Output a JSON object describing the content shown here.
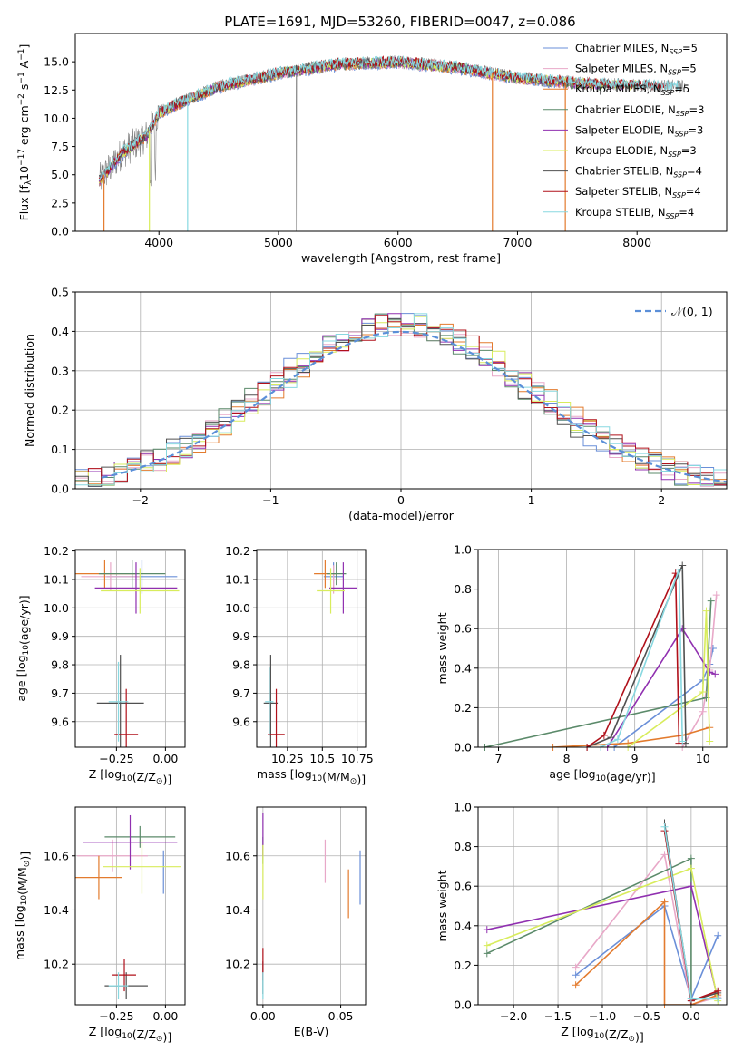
{
  "figure_title": "PLATE=1691, MJD=53260, FIBERID=0047, z=0.086",
  "colors": {
    "Chabrier MILES": "#6a8fd8",
    "Salpeter MILES": "#e8a8c8",
    "Kroupa MILES": "#e37b2e",
    "Chabrier ELODIE": "#5b8a6a",
    "Salpeter ELODIE": "#9030b0",
    "Kroupa ELODIE": "#d8ec5c",
    "Chabrier STELIB": "#505050",
    "Salpeter STELIB": "#b0101a",
    "Kroupa STELIB": "#88d8e0",
    "data": "#808080",
    "normal": "#5b8fd8"
  },
  "chart_data": [
    {
      "id": "spectrum",
      "type": "line",
      "xlabel": "wavelength [Angstrom, rest frame]",
      "ylabel_parts": [
        "Flux [f",
        "λ",
        "10",
        "−17",
        " erg cm",
        "−2",
        " s",
        "−1",
        " A",
        "−1",
        "]"
      ],
      "xlim": [
        3300,
        8750
      ],
      "ylim": [
        0,
        17.5
      ],
      "xticks": [
        4000,
        5000,
        6000,
        7000,
        8000
      ],
      "yticks": [
        0.0,
        2.5,
        5.0,
        7.5,
        10.0,
        12.5,
        15.0
      ],
      "legend": [
        {
          "name": "Chabrier MILES",
          "nssp": "5"
        },
        {
          "name": "Salpeter MILES",
          "nssp": "5"
        },
        {
          "name": "Kroupa MILES",
          "nssp": "5"
        },
        {
          "name": "Chabrier ELODIE",
          "nssp": "3"
        },
        {
          "name": "Salpeter ELODIE",
          "nssp": "3"
        },
        {
          "name": "Kroupa ELODIE",
          "nssp": "3"
        },
        {
          "name": "Chabrier STELIB",
          "nssp": "4"
        },
        {
          "name": "Salpeter STELIB",
          "nssp": "4"
        },
        {
          "name": "Kroupa STELIB",
          "nssp": "4"
        }
      ],
      "legend_position": "right",
      "approx_continuum": [
        [
          3500,
          4.5
        ],
        [
          3700,
          7.0
        ],
        [
          3900,
          8.5
        ],
        [
          4000,
          10.5
        ],
        [
          4200,
          11.5
        ],
        [
          4500,
          12.8
        ],
        [
          5000,
          14.0
        ],
        [
          5500,
          14.8
        ],
        [
          6000,
          15.0
        ],
        [
          6500,
          14.5
        ],
        [
          7000,
          13.6
        ],
        [
          7500,
          13.1
        ],
        [
          8000,
          12.9
        ],
        [
          8400,
          12.8
        ]
      ],
      "notes": "Observed spectrum (gray) overlaid by nine model fits"
    },
    {
      "id": "residuals",
      "type": "area",
      "xlabel": "(data-model)/error",
      "ylabel": "Normed distribution",
      "xlim": [
        -2.5,
        2.5
      ],
      "ylim": [
        0,
        0.5
      ],
      "xticks": [
        -2,
        -1,
        0,
        1,
        2
      ],
      "xtick_labels": [
        "−2",
        "−1",
        "0",
        "1",
        "2"
      ],
      "yticks": [
        0.0,
        0.1,
        0.2,
        0.3,
        0.4,
        0.5
      ],
      "reference_label": "𝒩(0, 1)",
      "bin_width": 0.1,
      "notes": "Step histograms of normalized residuals for nine fits vs. standard normal"
    },
    {
      "id": "age-vs-Z",
      "type": "scatter",
      "xlabel": "Z [log10(Z/Z⊙)]",
      "ylabel": "age [log10(age/yr)]",
      "xlim": [
        -0.46,
        0.1
      ],
      "ylim": [
        9.51,
        10.205
      ],
      "xticks": [
        -0.25,
        0.0
      ],
      "xtick_labels": [
        "−0.25",
        "0.00"
      ],
      "yticks": [
        9.6,
        9.7,
        9.8,
        9.9,
        10.0,
        10.1,
        10.2
      ],
      "points": [
        {
          "model": "Chabrier MILES",
          "x": -0.12,
          "y": 10.11,
          "xerr": 0.18,
          "yerr": 0.06
        },
        {
          "model": "Salpeter MILES",
          "x": -0.28,
          "y": 10.11,
          "xerr": 0.15,
          "yerr": 0.05
        },
        {
          "model": "Kroupa MILES",
          "x": -0.31,
          "y": 10.12,
          "xerr": 0.16,
          "yerr": 0.05
        },
        {
          "model": "Chabrier ELODIE",
          "x": -0.17,
          "y": 10.12,
          "xerr": 0.17,
          "yerr": 0.05
        },
        {
          "model": "Salpeter ELODIE",
          "x": -0.15,
          "y": 10.07,
          "xerr": 0.21,
          "yerr": 0.09
        },
        {
          "model": "Kroupa ELODIE",
          "x": -0.13,
          "y": 10.06,
          "xerr": 0.2,
          "yerr": 0.08
        },
        {
          "model": "Chabrier STELIB",
          "x": -0.23,
          "y": 9.665,
          "xerr": 0.12,
          "yerr": 0.17
        },
        {
          "model": "Salpeter STELIB",
          "x": -0.2,
          "y": 9.555,
          "xerr": 0.06,
          "yerr": 0.16
        },
        {
          "model": "Kroupa STELIB",
          "x": -0.24,
          "y": 9.67,
          "xerr": 0.05,
          "yerr": 0.14
        }
      ]
    },
    {
      "id": "age-vs-mass",
      "type": "scatter",
      "xlabel": "mass [log10(M/M⊙)]",
      "ylabel": "",
      "xlim": [
        10.03,
        10.81
      ],
      "ylim": [
        9.51,
        10.205
      ],
      "xticks": [
        10.25,
        10.5,
        10.75
      ],
      "yticks": [
        9.6,
        9.7,
        9.8,
        9.9,
        10.0,
        10.1,
        10.2
      ],
      "points": [
        {
          "model": "Chabrier MILES",
          "x": 10.58,
          "y": 10.11,
          "xerr": 0.07,
          "yerr": 0.05
        },
        {
          "model": "Salpeter MILES",
          "x": 10.58,
          "y": 10.1,
          "xerr": 0.06,
          "yerr": 0.05
        },
        {
          "model": "Kroupa MILES",
          "x": 10.52,
          "y": 10.12,
          "xerr": 0.08,
          "yerr": 0.05
        },
        {
          "model": "Chabrier ELODIE",
          "x": 10.6,
          "y": 10.12,
          "xerr": 0.07,
          "yerr": 0.04
        },
        {
          "model": "Salpeter ELODIE",
          "x": 10.65,
          "y": 10.07,
          "xerr": 0.1,
          "yerr": 0.09
        },
        {
          "model": "Kroupa ELODIE",
          "x": 10.56,
          "y": 10.06,
          "xerr": 0.1,
          "yerr": 0.08
        },
        {
          "model": "Chabrier STELIB",
          "x": 10.13,
          "y": 9.665,
          "xerr": 0.05,
          "yerr": 0.17
        },
        {
          "model": "Salpeter STELIB",
          "x": 10.17,
          "y": 9.555,
          "xerr": 0.06,
          "yerr": 0.16
        },
        {
          "model": "Kroupa STELIB",
          "x": 10.12,
          "y": 9.67,
          "xerr": 0.03,
          "yerr": 0.12
        }
      ]
    },
    {
      "id": "weight-vs-age",
      "type": "line",
      "xlabel": "age [log10(age/yr)]",
      "ylabel": "mass weight",
      "xlim": [
        6.7,
        10.35
      ],
      "ylim": [
        0,
        1
      ],
      "xticks": [
        7,
        8,
        9,
        10
      ],
      "yticks": [
        0.0,
        0.2,
        0.4,
        0.6,
        0.8,
        1.0
      ],
      "series": [
        {
          "model": "Chabrier MILES",
          "x": [
            8.7,
            10.0,
            10.1,
            10.15
          ],
          "y": [
            0.0,
            0.34,
            0.42,
            0.5
          ]
        },
        {
          "model": "Salpeter MILES",
          "x": [
            9.7,
            10.0,
            10.1,
            10.2
          ],
          "y": [
            0.0,
            0.18,
            0.39,
            0.77
          ]
        },
        {
          "model": "Kroupa MILES",
          "x": [
            7.8,
            8.9,
            9.7,
            10.1
          ],
          "y": [
            0.0,
            0.02,
            0.06,
            0.1
          ]
        },
        {
          "model": "Chabrier ELODIE",
          "x": [
            6.8,
            10.05,
            10.12
          ],
          "y": [
            0.0,
            0.25,
            0.74
          ]
        },
        {
          "model": "Salpeter ELODIE",
          "x": [
            8.6,
            9.7,
            10.1,
            10.18
          ],
          "y": [
            0.0,
            0.6,
            0.38,
            0.37
          ]
        },
        {
          "model": "Kroupa ELODIE",
          "x": [
            8.9,
            10.0,
            10.05,
            10.1
          ],
          "y": [
            0.0,
            0.28,
            0.69,
            0.03
          ]
        },
        {
          "model": "Chabrier STELIB",
          "x": [
            8.3,
            8.65,
            9.7,
            9.75
          ],
          "y": [
            0.0,
            0.05,
            0.92,
            0.02
          ]
        },
        {
          "model": "Salpeter STELIB",
          "x": [
            8.3,
            8.55,
            9.6,
            9.65
          ],
          "y": [
            0.0,
            0.06,
            0.88,
            0.02
          ]
        },
        {
          "model": "Kroupa STELIB",
          "x": [
            8.5,
            8.75,
            9.65,
            9.7
          ],
          "y": [
            0.0,
            0.04,
            0.9,
            0.03
          ]
        }
      ]
    },
    {
      "id": "mass-vs-Z",
      "type": "scatter",
      "xlabel": "Z [log10(Z/Z⊙)]",
      "ylabel": "mass [log10(M/M⊙)]",
      "xlim": [
        -0.46,
        0.1
      ],
      "ylim": [
        10.05,
        10.78
      ],
      "xticks": [
        -0.25,
        0.0
      ],
      "xtick_labels": [
        "−0.25",
        "0.00"
      ],
      "yticks": [
        10.2,
        10.4,
        10.6
      ],
      "points": [
        {
          "model": "Chabrier MILES",
          "x": -0.01,
          "y": 10.54,
          "xerr": 0.0,
          "yerr": 0.08
        },
        {
          "model": "Salpeter MILES",
          "x": -0.27,
          "y": 10.6,
          "xerr": 0.18,
          "yerr": 0.06
        },
        {
          "model": "Kroupa MILES",
          "x": -0.34,
          "y": 10.52,
          "xerr": 0.12,
          "yerr": 0.08
        },
        {
          "model": "Chabrier ELODIE",
          "x": -0.13,
          "y": 10.67,
          "xerr": 0.18,
          "yerr": 0.04
        },
        {
          "model": "Salpeter ELODIE",
          "x": -0.18,
          "y": 10.65,
          "xerr": 0.24,
          "yerr": 0.1
        },
        {
          "model": "Kroupa ELODIE",
          "x": -0.12,
          "y": 10.56,
          "xerr": 0.2,
          "yerr": 0.1
        },
        {
          "model": "Chabrier STELIB",
          "x": -0.2,
          "y": 10.12,
          "xerr": 0.11,
          "yerr": 0.05
        },
        {
          "model": "Salpeter STELIB",
          "x": -0.21,
          "y": 10.16,
          "xerr": 0.06,
          "yerr": 0.06
        },
        {
          "model": "Kroupa STELIB",
          "x": -0.24,
          "y": 10.12,
          "xerr": 0.05,
          "yerr": 0.05
        }
      ]
    },
    {
      "id": "mass-vs-EBV",
      "type": "scatter",
      "xlabel": "E(B-V)",
      "ylabel": "",
      "xlim": [
        -0.004,
        0.066
      ],
      "ylim": [
        10.05,
        10.78
      ],
      "xticks": [
        0.0,
        0.05
      ],
      "xtick_labels": [
        "0.00",
        "0.05"
      ],
      "yticks": [
        10.2,
        10.4,
        10.6
      ],
      "points": [
        {
          "model": "Chabrier MILES",
          "x": 0.0625,
          "y": 10.52,
          "xerr": 0,
          "yerr": 0.1
        },
        {
          "model": "Salpeter MILES",
          "x": 0.04,
          "y": 10.58,
          "xerr": 0,
          "yerr": 0.08
        },
        {
          "model": "Kroupa MILES",
          "x": 0.055,
          "y": 10.46,
          "xerr": 0,
          "yerr": 0.09
        },
        {
          "model": "Chabrier ELODIE",
          "x": 0.0,
          "y": 10.62,
          "xerr": 0,
          "yerr": 0.05
        },
        {
          "model": "Salpeter ELODIE",
          "x": 0.0,
          "y": 10.68,
          "xerr": 0,
          "yerr": 0.08
        },
        {
          "model": "Kroupa ELODIE",
          "x": 0.0,
          "y": 10.54,
          "xerr": 0,
          "yerr": 0.1
        },
        {
          "model": "Chabrier STELIB",
          "x": 0.0,
          "y": 10.15,
          "xerr": 0,
          "yerr": 0.06
        },
        {
          "model": "Salpeter STELIB",
          "x": 0.0,
          "y": 10.2,
          "xerr": 0,
          "yerr": 0.06
        },
        {
          "model": "Kroupa STELIB",
          "x": 0.0,
          "y": 10.12,
          "xerr": 0,
          "yerr": 0.05
        }
      ]
    },
    {
      "id": "weight-vs-Z",
      "type": "line",
      "xlabel": "Z [log10(Z/Z⊙)]",
      "ylabel": "mass weight",
      "xlim": [
        -2.4,
        0.4
      ],
      "ylim": [
        0,
        1
      ],
      "xticks": [
        -2.0,
        -1.5,
        -1.0,
        -0.5,
        0.0
      ],
      "xtick_labels": [
        "−2.0",
        "−1.5",
        "−1.0",
        "−0.5",
        "0.0"
      ],
      "yticks": [
        0.0,
        0.2,
        0.4,
        0.6,
        0.8,
        1.0
      ],
      "series": [
        {
          "model": "Chabrier MILES",
          "x": [
            -1.3,
            -0.3,
            0.0,
            0.3
          ],
          "y": [
            0.15,
            0.5,
            0.03,
            0.35
          ]
        },
        {
          "model": "Salpeter MILES",
          "x": [
            -1.3,
            -0.3,
            0.0,
            0.3
          ],
          "y": [
            0.19,
            0.76,
            0.0,
            0.04
          ]
        },
        {
          "model": "Kroupa MILES",
          "x": [
            -1.3,
            -0.3,
            -0.3,
            0.0,
            0.3
          ],
          "y": [
            0.1,
            0.52,
            0.0,
            0.0,
            0.05
          ]
        },
        {
          "model": "Chabrier ELODIE",
          "x": [
            -2.3,
            0.0,
            0.0
          ],
          "y": [
            0.26,
            0.74,
            0.0
          ]
        },
        {
          "model": "Salpeter ELODIE",
          "x": [
            -2.3,
            0.0,
            0.3
          ],
          "y": [
            0.38,
            0.6,
            0.03
          ]
        },
        {
          "model": "Kroupa ELODIE",
          "x": [
            -2.3,
            0.0,
            0.3
          ],
          "y": [
            0.3,
            0.69,
            0.02
          ]
        },
        {
          "model": "Chabrier STELIB",
          "x": [
            -0.3,
            0.0,
            0.3
          ],
          "y": [
            0.92,
            0.02,
            0.06
          ]
        },
        {
          "model": "Salpeter STELIB",
          "x": [
            -0.3,
            0.0,
            0.3
          ],
          "y": [
            0.88,
            0.02,
            0.07
          ]
        },
        {
          "model": "Kroupa STELIB",
          "x": [
            -0.3,
            0.0,
            0.3
          ],
          "y": [
            0.9,
            0.03,
            0.03
          ]
        }
      ]
    }
  ]
}
